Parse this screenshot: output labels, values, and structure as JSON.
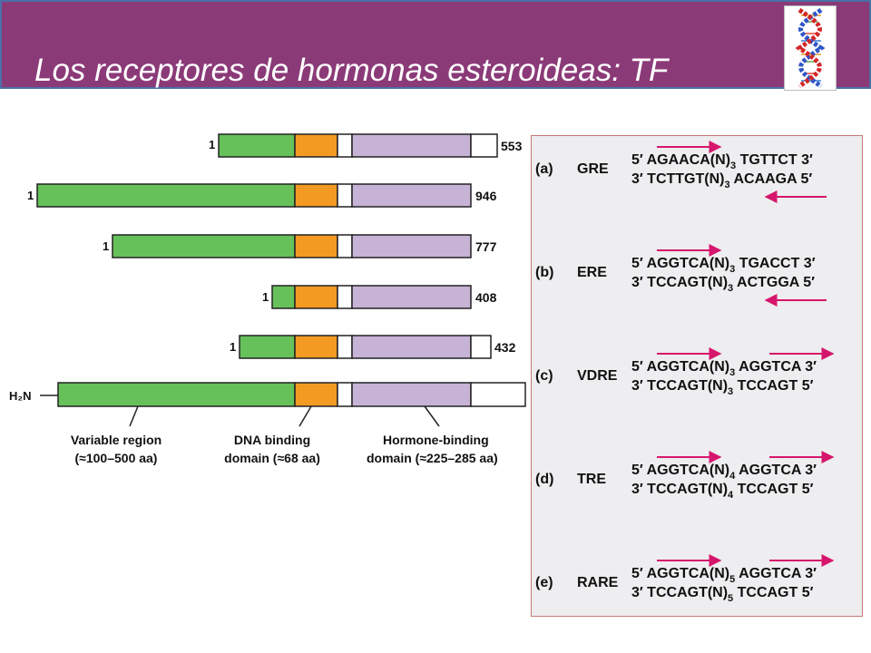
{
  "title": "Los receptores de hormonas esteroideas: TF",
  "logo": {
    "icon": "dna-double-helix-icon"
  },
  "colors": {
    "title_bar": "#8b3a78",
    "variable_region": "#66c15a",
    "dna_binding": "#f39a22",
    "hinge": "#ffffff",
    "hormone_binding": "#c7b3d6",
    "arrow": "#d6166c",
    "panel_bg": "#eeedef"
  },
  "receptors": [
    {
      "start_label": "1",
      "end_label": "553"
    },
    {
      "start_label": "1",
      "end_label": "946"
    },
    {
      "start_label": "1",
      "end_label": "777"
    },
    {
      "start_label": "1",
      "end_label": "408"
    },
    {
      "start_label": "1",
      "end_label": "432"
    },
    {
      "start_label": "H₂N",
      "end_label": ""
    }
  ],
  "legend": {
    "variable": {
      "line1": "Variable region",
      "line2": "(≈100–500 aa)"
    },
    "dna": {
      "line1": "DNA binding",
      "line2": "domain (≈68 aa)"
    },
    "hormone": {
      "line1": "Hormone-binding",
      "line2": "domain (≈225–285 aa)"
    }
  },
  "response_elements": [
    {
      "letter": "(a)",
      "name": "GRE",
      "top": {
        "prefix": "5′",
        "half1": "AGAACA(N)",
        "n": "3",
        "half2": "TGTTCT",
        "suffix": "3′"
      },
      "bottom": {
        "prefix": "3′",
        "half1": "TCTTGT(N)",
        "n": "3",
        "half2": "ACAAGA",
        "suffix": "5′"
      },
      "arrows": [
        "right-top",
        "left-bottom"
      ]
    },
    {
      "letter": "(b)",
      "name": "ERE",
      "top": {
        "prefix": "5′",
        "half1": "AGGTCA(N)",
        "n": "3",
        "half2": "TGACCT",
        "suffix": "3′"
      },
      "bottom": {
        "prefix": "3′",
        "half1": "TCCAGT(N)",
        "n": "3",
        "half2": "ACTGGA",
        "suffix": "5′"
      },
      "arrows": [
        "right-top",
        "left-bottom"
      ]
    },
    {
      "letter": "(c)",
      "name": "VDRE",
      "top": {
        "prefix": "5′",
        "half1": "AGGTCA(N)",
        "n": "3",
        "half2": "AGGTCA",
        "suffix": "3′"
      },
      "bottom": {
        "prefix": "3′",
        "half1": "TCCAGT(N)",
        "n": "3",
        "half2": "TCCAGT",
        "suffix": "5′"
      },
      "arrows": [
        "right-top",
        "right-top2"
      ]
    },
    {
      "letter": "(d)",
      "name": "TRE",
      "top": {
        "prefix": "5′",
        "half1": "AGGTCA(N)",
        "n": "4",
        "half2": "AGGTCA",
        "suffix": "3′"
      },
      "bottom": {
        "prefix": "3′",
        "half1": "TCCAGT(N)",
        "n": "4",
        "half2": "TCCAGT",
        "suffix": "5′"
      },
      "arrows": [
        "right-top",
        "right-top2"
      ]
    },
    {
      "letter": "(e)",
      "name": "RARE",
      "top": {
        "prefix": "5′",
        "half1": "AGGTCA(N)",
        "n": "5",
        "half2": "AGGTCA",
        "suffix": "3′"
      },
      "bottom": {
        "prefix": "3′",
        "half1": "TCCAGT(N)",
        "n": "5",
        "half2": "TCCAGT",
        "suffix": "5′"
      },
      "arrows": [
        "right-top",
        "right-top2"
      ]
    }
  ]
}
